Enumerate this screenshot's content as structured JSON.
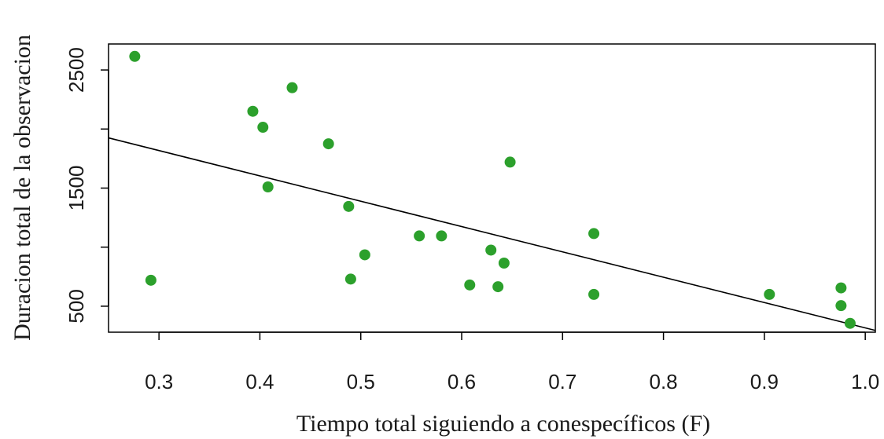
{
  "chart_data": {
    "type": "scatter",
    "title": "",
    "xlabel": "Tiempo total siguiendo a conespecíficos (F)",
    "ylabel": "Duracion total de la observacion",
    "xlim": [
      0.25,
      1.01
    ],
    "ylim": [
      280,
      2720
    ],
    "x_ticks": [
      0.3,
      0.4,
      0.5,
      0.6,
      0.7,
      0.8,
      0.9,
      1.0
    ],
    "x_tick_labels": [
      "0.3",
      "0.4",
      "0.5",
      "0.6",
      "0.7",
      "0.8",
      "0.9",
      "1.0"
    ],
    "y_ticks": [
      500,
      1000,
      1500,
      2000,
      2500
    ],
    "y_tick_labels": [
      "500",
      "",
      "1500",
      "",
      "2500"
    ],
    "grid": false,
    "point_color": "#2ca02c",
    "line_color": "#000000",
    "series": [
      {
        "values": [
          {
            "x": 0.276,
            "y": 2615
          },
          {
            "x": 0.292,
            "y": 720
          },
          {
            "x": 0.393,
            "y": 2150
          },
          {
            "x": 0.403,
            "y": 2015
          },
          {
            "x": 0.408,
            "y": 1510
          },
          {
            "x": 0.432,
            "y": 2350
          },
          {
            "x": 0.468,
            "y": 1875
          },
          {
            "x": 0.488,
            "y": 1345
          },
          {
            "x": 0.49,
            "y": 730
          },
          {
            "x": 0.504,
            "y": 935
          },
          {
            "x": 0.558,
            "y": 1095
          },
          {
            "x": 0.58,
            "y": 1095
          },
          {
            "x": 0.608,
            "y": 680
          },
          {
            "x": 0.629,
            "y": 975
          },
          {
            "x": 0.636,
            "y": 665
          },
          {
            "x": 0.642,
            "y": 865
          },
          {
            "x": 0.648,
            "y": 1720
          },
          {
            "x": 0.731,
            "y": 1115
          },
          {
            "x": 0.731,
            "y": 600
          },
          {
            "x": 0.905,
            "y": 600
          },
          {
            "x": 0.976,
            "y": 655
          },
          {
            "x": 0.976,
            "y": 505
          },
          {
            "x": 0.985,
            "y": 355
          }
        ]
      }
    ],
    "regression_line": {
      "x": [
        0.25,
        1.01
      ],
      "y": [
        1925,
        295
      ]
    }
  }
}
